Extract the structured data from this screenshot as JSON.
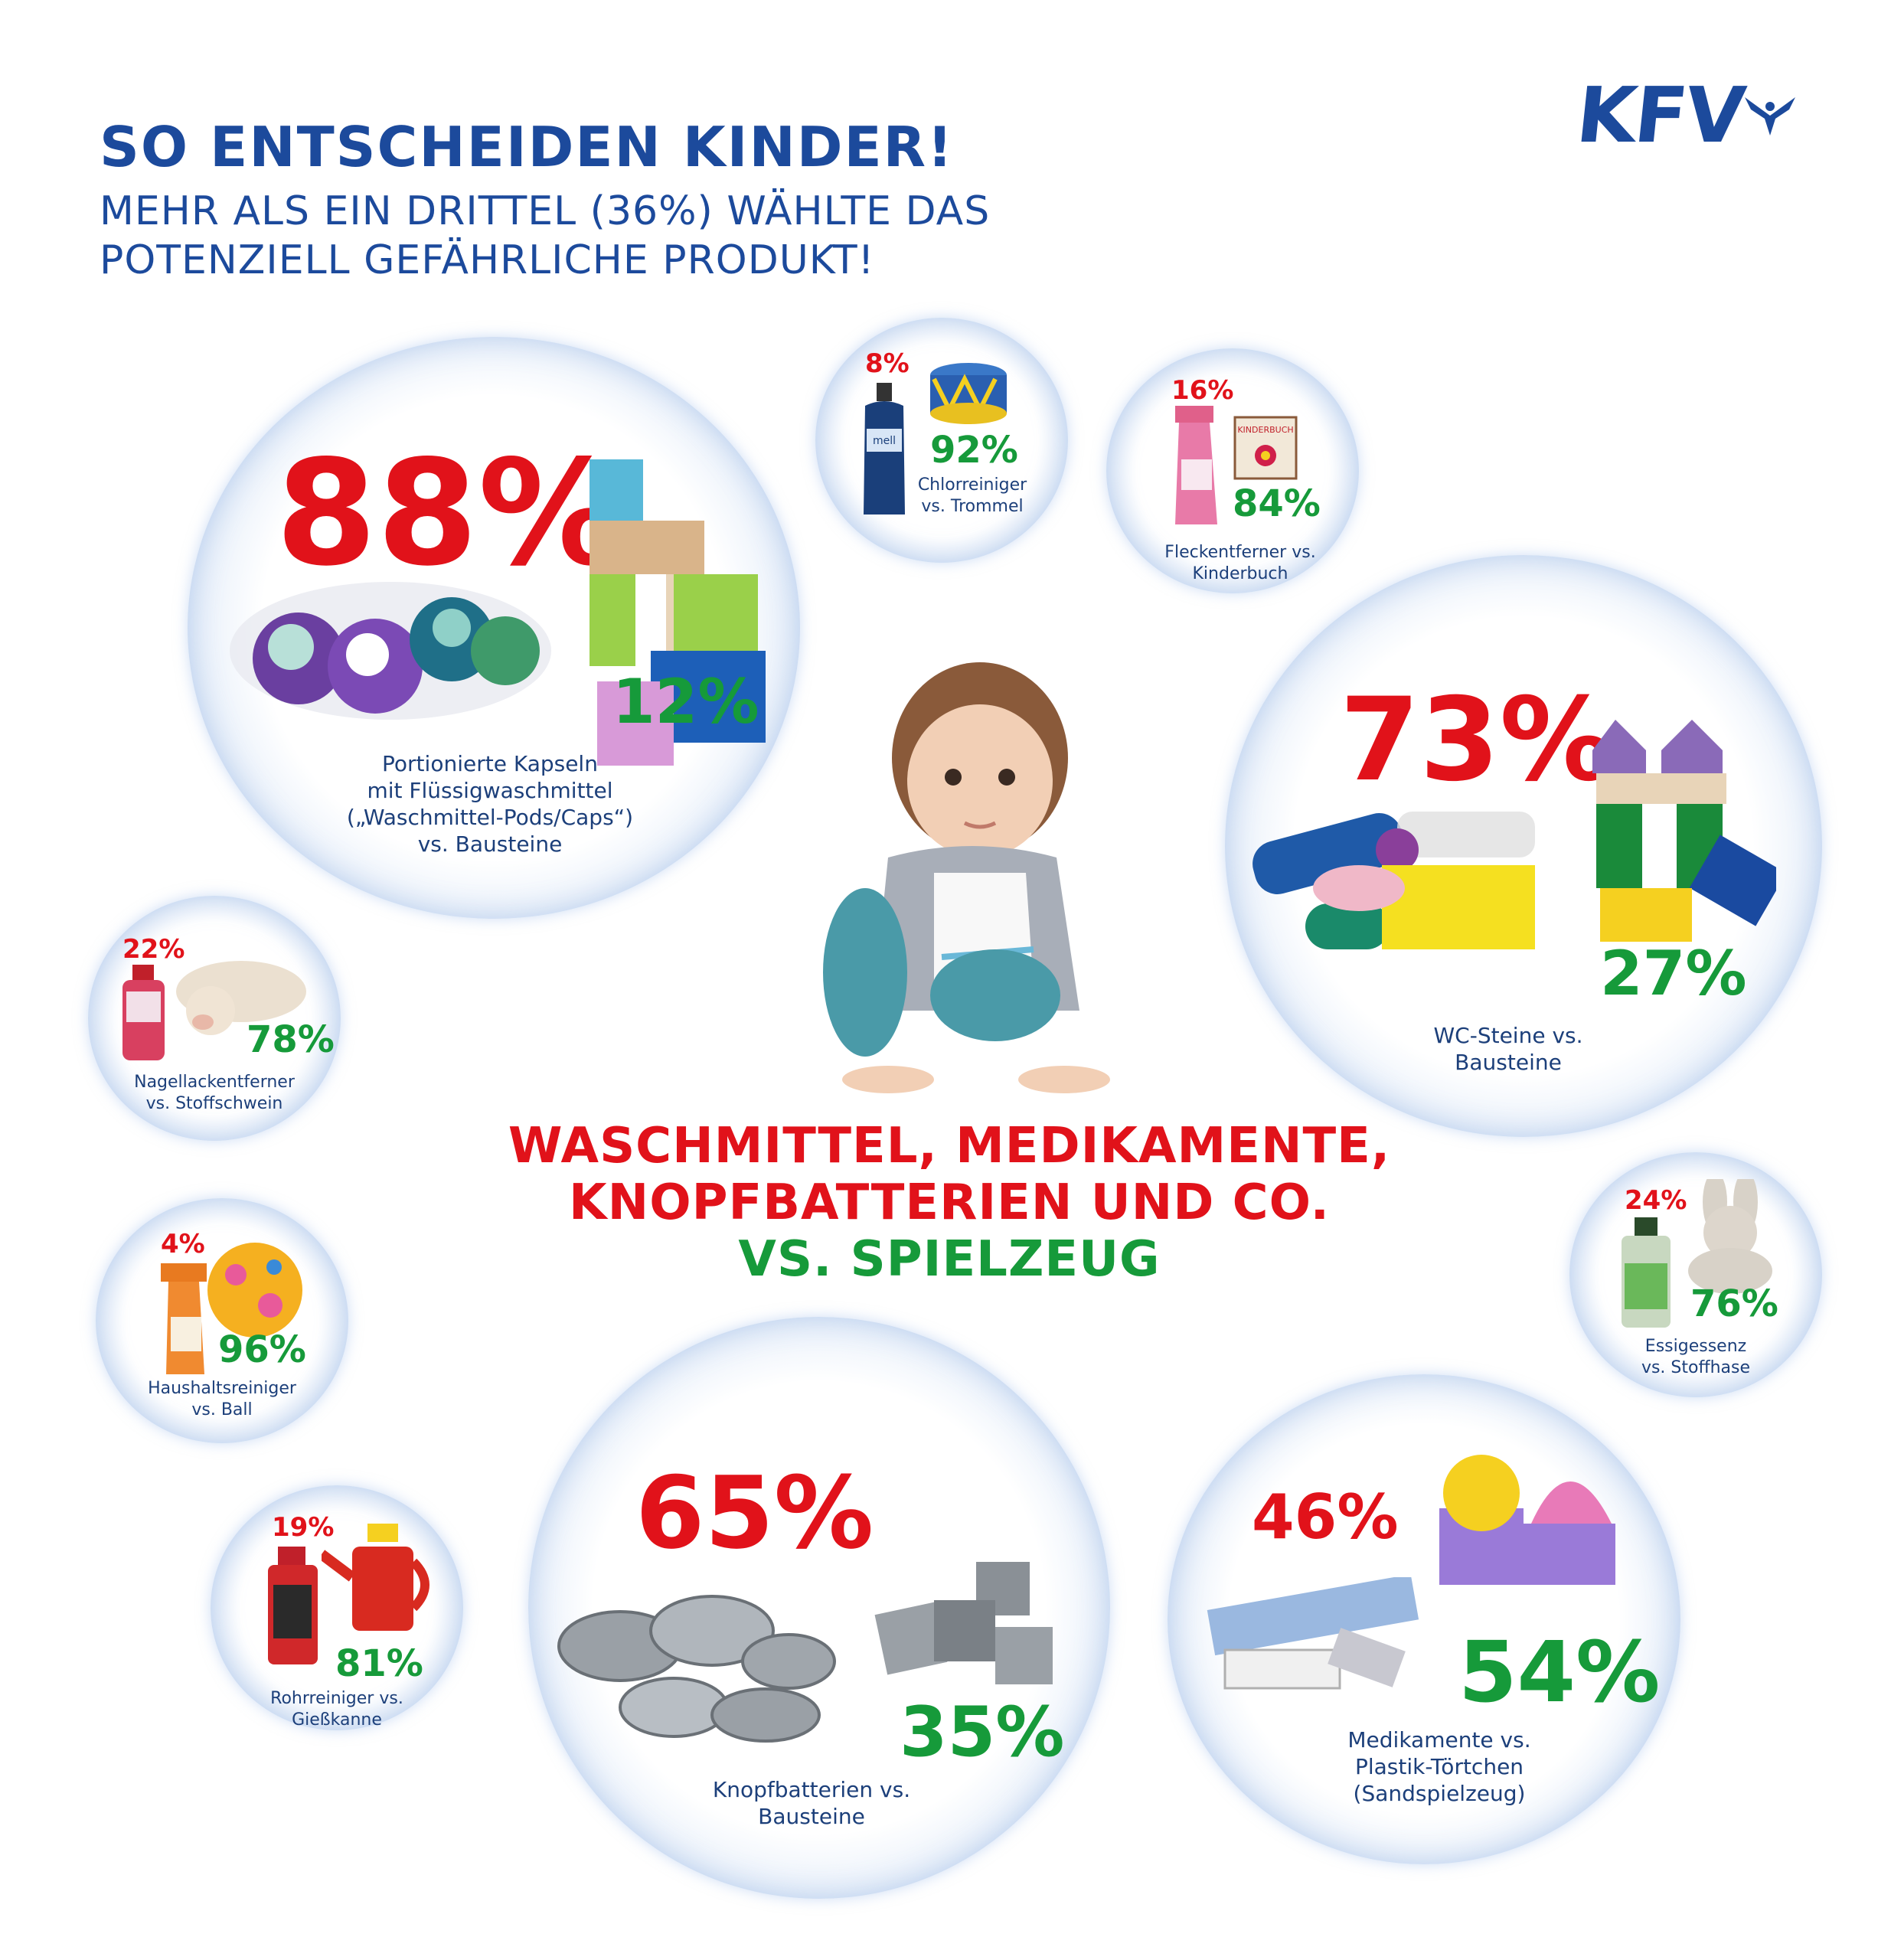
{
  "header": {
    "title": "SO ENTSCHEIDEN KINDER!",
    "subtitle_line1": "MEHR ALS EIN DRITTEL (36%) WÄHLTE DAS",
    "subtitle_line2": "POTENZIELL GEFÄHRLICHE PRODUKT!"
  },
  "logo": {
    "text": "KFV"
  },
  "center": {
    "line1": "WASCHMITTEL, MEDIKAMENTE,",
    "line2": "KNOPFBATTERIEN UND CO.",
    "line3": "VS. SPIELZEUG"
  },
  "colors": {
    "dangerous": "#e1121a",
    "toy": "#169a3a",
    "brand": "#1c4a9c"
  },
  "bubbles": {
    "pods": {
      "danger": "88%",
      "toy": "12%",
      "caption": [
        "Portionierte Kapseln",
        "mit Flüssigwaschmittel",
        "(„Waschmittel-Pods/Caps“)",
        "vs. Bausteine"
      ]
    },
    "chlor": {
      "danger": "8%",
      "toy": "92%",
      "caption": [
        "Chlorreiniger",
        "vs. Trommel"
      ]
    },
    "fleck": {
      "danger": "16%",
      "toy": "84%",
      "caption": [
        "Fleckentferner vs.",
        "Kinderbuch"
      ]
    },
    "wc": {
      "danger": "73%",
      "toy": "27%",
      "caption": [
        "WC-Steine vs.",
        "Bausteine"
      ]
    },
    "nagel": {
      "danger": "22%",
      "toy": "78%",
      "caption": [
        "Nagellackentferner",
        "vs. Stoffschwein"
      ]
    },
    "haushalt": {
      "danger": "4%",
      "toy": "96%",
      "caption": [
        "Haushaltsreiniger",
        "vs. Ball"
      ]
    },
    "essig": {
      "danger": "24%",
      "toy": "76%",
      "caption": [
        "Essigessenz",
        "vs. Stoffhase"
      ]
    },
    "rohr": {
      "danger": "19%",
      "toy": "81%",
      "caption": [
        "Rohrreiniger vs.",
        "Gießkanne"
      ]
    },
    "knopf": {
      "danger": "65%",
      "toy": "35%",
      "caption": [
        "Knopfbatterien vs.",
        "Bausteine"
      ]
    },
    "medi": {
      "danger": "46%",
      "toy": "54%",
      "caption": [
        "Medikamente vs.",
        "Plastik-Törtchen",
        "(Sandspielzeug)"
      ]
    }
  },
  "image_labels": {
    "chlor_bottle": "mell",
    "book": "KINDERBUCH"
  }
}
